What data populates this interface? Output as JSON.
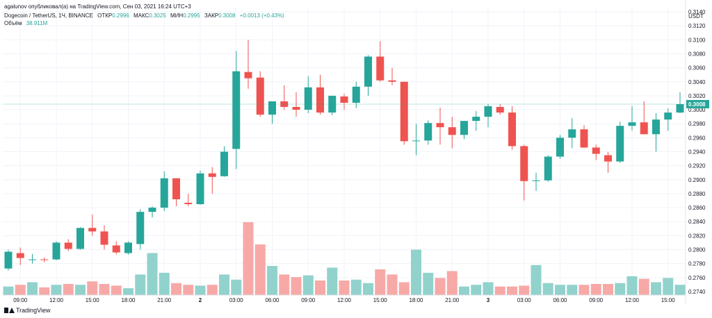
{
  "header": {
    "published": "agalunov опубликовал(а) на TradingView.com, Сен 03, 2021 16:24 UTC+3",
    "symbol": "Dogecoin / TetherUS, 1Ч, BINANCE",
    "open_label": "ОТКР",
    "open_value": "0.2996",
    "high_label": "МАКС",
    "high_value": "0.3025",
    "low_label": "МИН",
    "low_value": "0.2995",
    "close_label": "ЗАКР",
    "close_value": "0.3008",
    "change": "+0.0013 (+0.43%)",
    "volume_label": "Объём",
    "volume_value": "38.911M"
  },
  "footer": {
    "brand": "TradingView"
  },
  "colors": {
    "up": "#26a69a",
    "down": "#ef5350",
    "up_vol": "#92d2cc",
    "down_vol": "#f7a9a7",
    "grid": "#f0f3fa",
    "axis_text": "#131722"
  },
  "chart_data": {
    "type": "candlestick",
    "currency": "USDT",
    "last_price": "0.3008",
    "ylim": [
      0.2735,
      0.3145
    ],
    "y_ticks": [
      "0.3140",
      "0.3120",
      "0.3100",
      "0.3080",
      "0.3060",
      "0.3040",
      "0.3020",
      "0.3000",
      "0.2980",
      "0.2960",
      "0.2940",
      "0.2920",
      "0.2900",
      "0.2880",
      "0.2860",
      "0.2840",
      "0.2820",
      "0.2800",
      "0.2780",
      "0.2760",
      "0.2740"
    ],
    "x_ticks": [
      {
        "label": "09:00",
        "index": 1
      },
      {
        "label": "12:00",
        "index": 4
      },
      {
        "label": "15:00",
        "index": 7
      },
      {
        "label": "18:00",
        "index": 10
      },
      {
        "label": "21:00",
        "index": 13
      },
      {
        "label": "2",
        "index": 16
      },
      {
        "label": "03:00",
        "index": 19
      },
      {
        "label": "06:00",
        "index": 22
      },
      {
        "label": "09:00",
        "index": 25
      },
      {
        "label": "12:00",
        "index": 28
      },
      {
        "label": "15:00",
        "index": 31
      },
      {
        "label": "18:00",
        "index": 34
      },
      {
        "label": "21:00",
        "index": 37
      },
      {
        "label": "3",
        "index": 40
      },
      {
        "label": "03:00",
        "index": 43
      },
      {
        "label": "06:00",
        "index": 46
      },
      {
        "label": "09:00",
        "index": 49
      },
      {
        "label": "12:00",
        "index": 52
      },
      {
        "label": "15:00",
        "index": 55
      }
    ],
    "candles": [
      {
        "o": 0.2773,
        "h": 0.28,
        "l": 0.277,
        "c": 0.2797,
        "v": 0.1
      },
      {
        "o": 0.2795,
        "h": 0.2803,
        "l": 0.2778,
        "c": 0.2788,
        "v": 0.12
      },
      {
        "o": 0.2785,
        "h": 0.2794,
        "l": 0.278,
        "c": 0.2786,
        "v": 0.15
      },
      {
        "o": 0.2786,
        "h": 0.2789,
        "l": 0.2782,
        "c": 0.2785,
        "v": 0.09
      },
      {
        "o": 0.2786,
        "h": 0.2812,
        "l": 0.2785,
        "c": 0.281,
        "v": 0.12
      },
      {
        "o": 0.281,
        "h": 0.2815,
        "l": 0.2798,
        "c": 0.2801,
        "v": 0.13
      },
      {
        "o": 0.2801,
        "h": 0.2832,
        "l": 0.28,
        "c": 0.2831,
        "v": 0.12
      },
      {
        "o": 0.2831,
        "h": 0.285,
        "l": 0.282,
        "c": 0.2826,
        "v": 0.16
      },
      {
        "o": 0.2826,
        "h": 0.2835,
        "l": 0.28,
        "c": 0.2807,
        "v": 0.13
      },
      {
        "o": 0.2806,
        "h": 0.2812,
        "l": 0.2793,
        "c": 0.2796,
        "v": 0.11
      },
      {
        "o": 0.2795,
        "h": 0.2812,
        "l": 0.2793,
        "c": 0.281,
        "v": 0.08
      },
      {
        "o": 0.2808,
        "h": 0.2858,
        "l": 0.28,
        "c": 0.2854,
        "v": 0.24
      },
      {
        "o": 0.2854,
        "h": 0.2862,
        "l": 0.2846,
        "c": 0.286,
        "v": 0.49
      },
      {
        "o": 0.286,
        "h": 0.2912,
        "l": 0.2855,
        "c": 0.2902,
        "v": 0.26
      },
      {
        "o": 0.2902,
        "h": 0.2902,
        "l": 0.2862,
        "c": 0.2872,
        "v": 0.14
      },
      {
        "o": 0.2867,
        "h": 0.288,
        "l": 0.2862,
        "c": 0.2865,
        "v": 0.12
      },
      {
        "o": 0.2865,
        "h": 0.2913,
        "l": 0.2864,
        "c": 0.2909,
        "v": 0.11
      },
      {
        "o": 0.2909,
        "h": 0.2918,
        "l": 0.288,
        "c": 0.2904,
        "v": 0.12
      },
      {
        "o": 0.2905,
        "h": 0.2948,
        "l": 0.2904,
        "c": 0.294,
        "v": 0.24
      },
      {
        "o": 0.2944,
        "h": 0.3084,
        "l": 0.2915,
        "c": 0.3055,
        "v": 0.18
      },
      {
        "o": 0.3054,
        "h": 0.31,
        "l": 0.303,
        "c": 0.3045,
        "v": 0.85
      },
      {
        "o": 0.3046,
        "h": 0.3055,
        "l": 0.299,
        "c": 0.2993,
        "v": 0.59
      },
      {
        "o": 0.2993,
        "h": 0.301,
        "l": 0.298,
        "c": 0.3012,
        "v": 0.34
      },
      {
        "o": 0.3012,
        "h": 0.3035,
        "l": 0.3,
        "c": 0.3004,
        "v": 0.24
      },
      {
        "o": 0.3004,
        "h": 0.3025,
        "l": 0.299,
        "c": 0.3,
        "v": 0.21
      },
      {
        "o": 0.3,
        "h": 0.3048,
        "l": 0.2995,
        "c": 0.3032,
        "v": 0.23
      },
      {
        "o": 0.3032,
        "h": 0.305,
        "l": 0.2993,
        "c": 0.2996,
        "v": 0.17
      },
      {
        "o": 0.2996,
        "h": 0.302,
        "l": 0.2992,
        "c": 0.302,
        "v": 0.32
      },
      {
        "o": 0.3019,
        "h": 0.3023,
        "l": 0.3,
        "c": 0.301,
        "v": 0.17
      },
      {
        "o": 0.301,
        "h": 0.304,
        "l": 0.3002,
        "c": 0.3033,
        "v": 0.18
      },
      {
        "o": 0.3033,
        "h": 0.3078,
        "l": 0.302,
        "c": 0.3076,
        "v": 0.14
      },
      {
        "o": 0.3076,
        "h": 0.3098,
        "l": 0.304,
        "c": 0.3042,
        "v": 0.3
      },
      {
        "o": 0.3042,
        "h": 0.306,
        "l": 0.3035,
        "c": 0.304,
        "v": 0.24
      },
      {
        "o": 0.304,
        "h": 0.304,
        "l": 0.295,
        "c": 0.2955,
        "v": 0.15
      },
      {
        "o": 0.2955,
        "h": 0.298,
        "l": 0.2935,
        "c": 0.2956,
        "v": 0.53
      },
      {
        "o": 0.2956,
        "h": 0.2985,
        "l": 0.295,
        "c": 0.2981,
        "v": 0.26
      },
      {
        "o": 0.2981,
        "h": 0.3003,
        "l": 0.295,
        "c": 0.2975,
        "v": 0.2
      },
      {
        "o": 0.2975,
        "h": 0.299,
        "l": 0.2945,
        "c": 0.2964,
        "v": 0.28
      },
      {
        "o": 0.2964,
        "h": 0.2984,
        "l": 0.2958,
        "c": 0.2984,
        "v": 0.1
      },
      {
        "o": 0.2984,
        "h": 0.2998,
        "l": 0.297,
        "c": 0.299,
        "v": 0.12
      },
      {
        "o": 0.299,
        "h": 0.3008,
        "l": 0.2975,
        "c": 0.3005,
        "v": 0.15
      },
      {
        "o": 0.3004,
        "h": 0.3008,
        "l": 0.2993,
        "c": 0.2996,
        "v": 0.1
      },
      {
        "o": 0.2996,
        "h": 0.3005,
        "l": 0.2943,
        "c": 0.2948,
        "v": 0.1
      },
      {
        "o": 0.2948,
        "h": 0.295,
        "l": 0.287,
        "c": 0.2898,
        "v": 0.11
      },
      {
        "o": 0.2898,
        "h": 0.291,
        "l": 0.2884,
        "c": 0.2899,
        "v": 0.35
      },
      {
        "o": 0.2899,
        "h": 0.2935,
        "l": 0.2897,
        "c": 0.2933,
        "v": 0.14
      },
      {
        "o": 0.2933,
        "h": 0.2964,
        "l": 0.293,
        "c": 0.296,
        "v": 0.12
      },
      {
        "o": 0.296,
        "h": 0.2988,
        "l": 0.2945,
        "c": 0.2972,
        "v": 0.12
      },
      {
        "o": 0.2972,
        "h": 0.2978,
        "l": 0.2945,
        "c": 0.2946,
        "v": 0.12
      },
      {
        "o": 0.2946,
        "h": 0.295,
        "l": 0.2928,
        "c": 0.2937,
        "v": 0.13
      },
      {
        "o": 0.2935,
        "h": 0.294,
        "l": 0.291,
        "c": 0.2926,
        "v": 0.13
      },
      {
        "o": 0.2926,
        "h": 0.2983,
        "l": 0.2924,
        "c": 0.2977,
        "v": 0.14
      },
      {
        "o": 0.2977,
        "h": 0.3005,
        "l": 0.297,
        "c": 0.2982,
        "v": 0.22
      },
      {
        "o": 0.2982,
        "h": 0.3012,
        "l": 0.2965,
        "c": 0.2965,
        "v": 0.19
      },
      {
        "o": 0.2965,
        "h": 0.2995,
        "l": 0.294,
        "c": 0.2986,
        "v": 0.15
      },
      {
        "o": 0.2986,
        "h": 0.3002,
        "l": 0.297,
        "c": 0.2996,
        "v": 0.2
      },
      {
        "o": 0.2996,
        "h": 0.3025,
        "l": 0.2995,
        "c": 0.3008,
        "v": 0.12
      }
    ]
  }
}
